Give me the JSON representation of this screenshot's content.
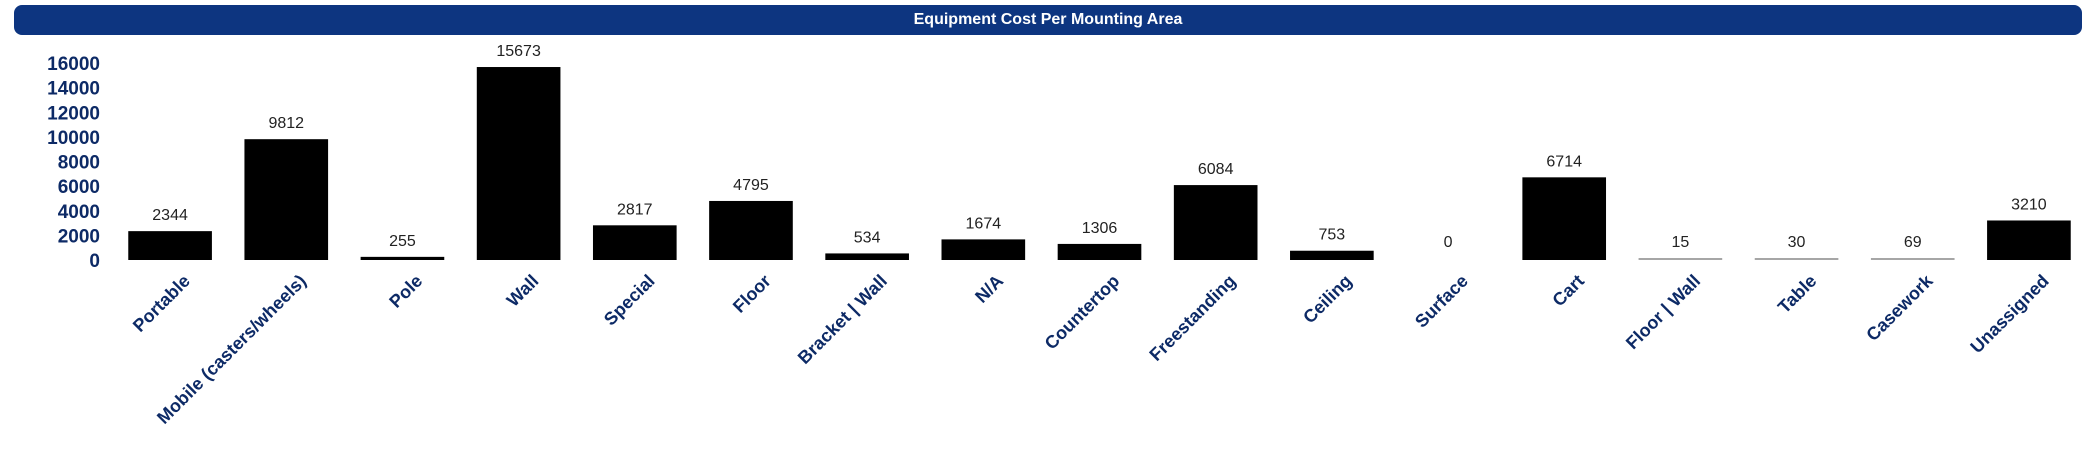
{
  "colors": {
    "title_bar": "#0d3580",
    "title_text": "#ffffff",
    "axis_text": "#0d2a66",
    "bar": "#000000",
    "data_label": "#222222"
  },
  "chart_data": {
    "type": "bar",
    "title": "Equipment Cost Per Mounting Area",
    "xlabel": "",
    "ylabel": "",
    "ylim": [
      0,
      16000
    ],
    "yticks": [
      "0",
      "2000",
      "4000",
      "6000",
      "8000",
      "10000",
      "12000",
      "14000",
      "16000"
    ],
    "grid": false,
    "legend": "none",
    "categories": [
      "Portable",
      "Mobile (casters/wheels)",
      "Pole",
      "Wall",
      "Special",
      "Floor",
      "Bracket | Wall",
      "N/A",
      "Countertop",
      "Freestanding",
      "Ceiling",
      "Surface",
      "Cart",
      "Floor | Wall",
      "Table",
      "Casework",
      "Unassigned"
    ],
    "values": [
      2344,
      9812,
      255,
      15673,
      2817,
      4795,
      534,
      1674,
      1306,
      6084,
      753,
      0,
      6714,
      15,
      30,
      69,
      3210
    ],
    "data_labels": [
      "2344",
      "9812",
      "255",
      "15673",
      "2817",
      "4795",
      "534",
      "1674",
      "1306",
      "6084",
      "753",
      "0",
      "6714",
      "15",
      "30",
      "69",
      "3210"
    ]
  }
}
